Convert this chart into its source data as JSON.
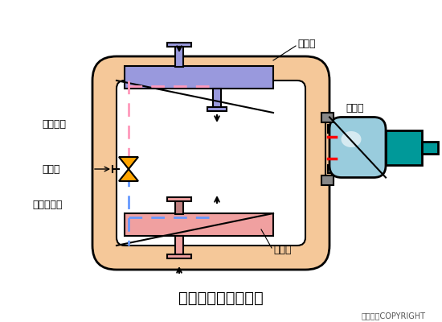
{
  "title": "蒸气压缩式制冷系统",
  "copyright": "东方仿真COPYRIGHT",
  "labels": {
    "condenser": "冷凝器",
    "compressor": "压缩机",
    "expansion_valve": "膨胀阀",
    "evaporator": "蒸发器",
    "high_pressure_liquid": "高压液体",
    "low_pressure_wet_vapor": "低压湿蒸气"
  },
  "colors": {
    "background": "#ffffff",
    "main_body": "#F5C899",
    "main_body_edge": "#000000",
    "condenser_fill": "#9999DD",
    "condenser_edge": "#000000",
    "evaporator_fill": "#F0A0A0",
    "evaporator_edge": "#000000",
    "compressor_body": "#99CCDD",
    "compressor_edge": "#000000",
    "compressor_motor": "#009999",
    "expansion_valve_fill": "#FFA500",
    "pipe_high_pressure": "#FF99BB",
    "pipe_low_pressure": "#6699FF",
    "arrow_color": "#000000",
    "red_marks": "#FF0000",
    "diagonal_line": "#000000"
  }
}
